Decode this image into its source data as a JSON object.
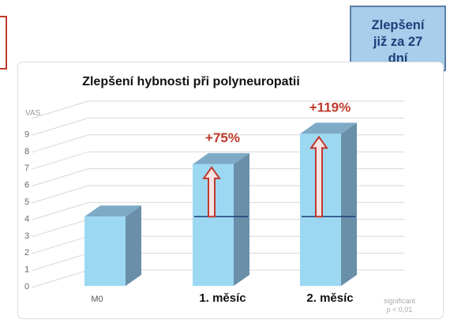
{
  "badge": {
    "lines": [
      "Zlepšení",
      "již za 27",
      "dní"
    ]
  },
  "chart_data": {
    "type": "bar",
    "title": "Zlepšení hybnosti při polyneuropatii",
    "ylabel": "VAS",
    "ylim": [
      0,
      10
    ],
    "yticks": [
      0,
      1,
      2,
      3,
      4,
      5,
      6,
      7,
      8,
      9
    ],
    "categories": [
      "M0",
      "1. měsíc",
      "2. měsíc"
    ],
    "values": [
      4.1,
      7.2,
      9.0
    ],
    "baseline": 4.1,
    "annotations": [
      "",
      "+75%",
      "+119%"
    ],
    "grid": true,
    "bar_style": "3d",
    "footnote": [
      "significant",
      "p < 0,01"
    ],
    "colors": {
      "bar_front": "#9dd8f3",
      "bar_side": "#6a8fa8",
      "bar_top": "#7eaac6",
      "arrow": "#c0392b",
      "annotation": "#c0392b",
      "baseline": "#1c3f7a",
      "grid": "#d8d8d8",
      "badge_fill": "#a9cdea",
      "badge_text": "#1c3f7a"
    }
  }
}
